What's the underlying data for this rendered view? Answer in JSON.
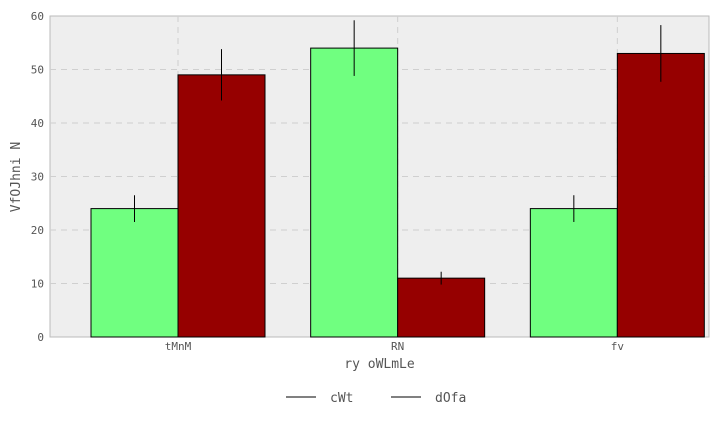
{
  "chart_data": {
    "type": "bar",
    "categories": [
      "tMnM",
      "RN",
      "fv"
    ],
    "series": [
      {
        "name": "cWt",
        "values": [
          24,
          54,
          24
        ],
        "errors": [
          2.5,
          5.2,
          2.5
        ],
        "color": "#70ff80"
      },
      {
        "name": "dOfa",
        "values": [
          49,
          11,
          53
        ],
        "errors": [
          4.8,
          1.2,
          5.3
        ],
        "color": "#960000"
      }
    ],
    "xlabel": "ry oWLmLe",
    "ylabel": "VfOJhni N",
    "ylim": [
      0,
      60
    ],
    "yticks": [
      0,
      10,
      20,
      30,
      40,
      50,
      60
    ],
    "grid": true,
    "background": "#eeeeee",
    "legend": {
      "placement": "bottom-center",
      "style": "line"
    }
  }
}
